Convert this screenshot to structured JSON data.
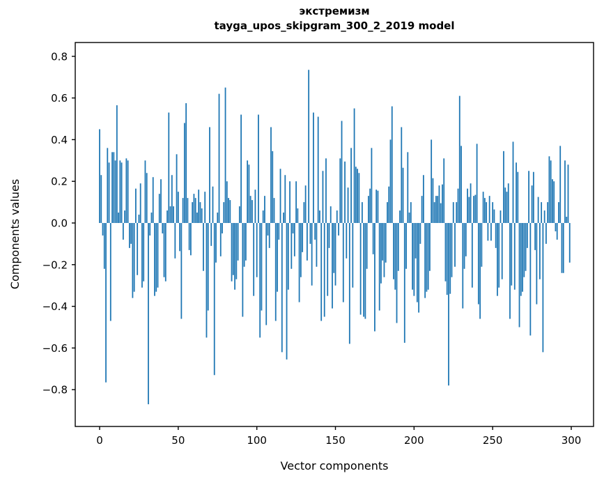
{
  "chart_data": {
    "type": "bar",
    "title_line1": "экстремизм",
    "title_line2": "tayga_upos_skipgram_300_2_2019 model",
    "xlabel": "Vector components",
    "ylabel": "Components values",
    "bar_color": "#1f77b4",
    "axis_color": "#000000",
    "background_color": "#ffffff",
    "n_components": 300,
    "xlim": [
      -16,
      316
    ],
    "ylim": [
      -0.95,
      0.87
    ],
    "grid": false,
    "legend": "none",
    "x_ticks": [
      {
        "value": 0,
        "label": "0"
      },
      {
        "value": 50,
        "label": "50"
      },
      {
        "value": 100,
        "label": "100"
      },
      {
        "value": 150,
        "label": "150"
      },
      {
        "value": 200,
        "label": "200"
      },
      {
        "value": 250,
        "label": "250"
      },
      {
        "value": 300,
        "label": "300"
      }
    ],
    "y_ticks": [
      {
        "value": 0.8,
        "label": "0.8"
      },
      {
        "value": 0.6,
        "label": "0.6"
      },
      {
        "value": 0.4,
        "label": "0.4"
      },
      {
        "value": 0.2,
        "label": "0.2"
      },
      {
        "value": 0.0,
        "label": "0.0"
      },
      {
        "value": -0.2,
        "label": "−0.2"
      },
      {
        "value": -0.4,
        "label": "−0.4"
      },
      {
        "value": -0.6,
        "label": "−0.6"
      },
      {
        "value": -0.8,
        "label": "−0.8"
      }
    ],
    "values": [
      0.45,
      0.23,
      -0.06,
      -0.22,
      -0.765,
      0.36,
      0.29,
      -0.47,
      0.34,
      0.34,
      0.3,
      0.565,
      0.05,
      0.3,
      0.29,
      -0.08,
      0.06,
      0.31,
      0.3,
      -0.12,
      -0.1,
      -0.36,
      -0.33,
      0.165,
      -0.25,
      0.04,
      0.19,
      -0.31,
      -0.28,
      0.3,
      0.24,
      -0.87,
      -0.06,
      0.05,
      0.22,
      -0.35,
      -0.33,
      -0.31,
      0.14,
      0.21,
      -0.05,
      -0.26,
      -0.28,
      0.06,
      0.53,
      0.08,
      0.23,
      0.08,
      -0.17,
      0.33,
      0.15,
      -0.135,
      -0.46,
      0.12,
      0.48,
      0.575,
      0.12,
      -0.13,
      -0.155,
      0.1,
      0.14,
      0.12,
      0.05,
      0.16,
      0.1,
      0.07,
      -0.23,
      0.15,
      -0.55,
      -0.42,
      0.46,
      -0.11,
      0.175,
      -0.73,
      -0.19,
      0.05,
      0.62,
      -0.16,
      -0.05,
      0.1,
      0.65,
      0.2,
      0.12,
      0.11,
      -0.28,
      -0.25,
      -0.32,
      -0.27,
      -0.18,
      0.08,
      0.52,
      -0.45,
      -0.21,
      -0.18,
      0.3,
      0.28,
      0.13,
      0.11,
      -0.35,
      0.16,
      -0.26,
      0.52,
      -0.55,
      -0.42,
      0.06,
      0.13,
      -0.49,
      -0.06,
      -0.12,
      0.46,
      0.345,
      0.12,
      -0.47,
      -0.33,
      -0.08,
      0.26,
      -0.62,
      0.05,
      0.23,
      -0.655,
      -0.32,
      0.2,
      -0.22,
      -0.05,
      -0.16,
      0.2,
      0.07,
      -0.38,
      -0.26,
      -0.14,
      0.1,
      0.18,
      -0.18,
      0.735,
      -0.1,
      -0.3,
      0.53,
      -0.08,
      -0.21,
      0.51,
      0.06,
      -0.47,
      0.25,
      -0.45,
      0.31,
      -0.35,
      -0.12,
      0.08,
      -0.41,
      -0.24,
      -0.3,
      0.06,
      -0.06,
      0.31,
      0.49,
      -0.38,
      0.295,
      -0.17,
      0.17,
      -0.58,
      0.36,
      -0.31,
      0.55,
      0.27,
      0.26,
      0.24,
      -0.44,
      0.1,
      -0.45,
      -0.46,
      -0.22,
      0.13,
      0.165,
      0.36,
      -0.15,
      -0.52,
      0.16,
      0.155,
      -0.42,
      -0.29,
      -0.18,
      -0.26,
      -0.19,
      0.1,
      0.175,
      0.4,
      0.56,
      -0.27,
      -0.32,
      -0.48,
      -0.23,
      0.06,
      0.46,
      0.265,
      -0.575,
      -0.22,
      0.34,
      0.05,
      0.1,
      -0.32,
      -0.35,
      -0.17,
      -0.38,
      -0.43,
      -0.1,
      0.13,
      0.23,
      -0.36,
      -0.33,
      -0.32,
      -0.23,
      0.4,
      0.215,
      0.1,
      0.13,
      0.13,
      0.18,
      0.095,
      0.185,
      0.31,
      -0.28,
      -0.345,
      -0.78,
      -0.34,
      -0.26,
      0.1,
      -0.21,
      0.1,
      0.165,
      0.61,
      0.37,
      -0.41,
      -0.22,
      -0.16,
      0.165,
      0.125,
      0.19,
      -0.31,
      0.13,
      0.135,
      0.38,
      -0.39,
      -0.46,
      -0.21,
      0.15,
      0.12,
      0.1,
      -0.085,
      0.13,
      -0.085,
      0.1,
      0.065,
      -0.12,
      -0.35,
      -0.31,
      0.06,
      -0.27,
      0.345,
      0.17,
      0.15,
      0.19,
      -0.46,
      -0.3,
      0.39,
      -0.32,
      0.29,
      0.245,
      -0.5,
      -0.35,
      -0.33,
      -0.26,
      -0.23,
      -0.12,
      0.25,
      -0.54,
      0.18,
      0.245,
      -0.13,
      -0.39,
      0.125,
      -0.27,
      0.1,
      -0.62,
      0.06,
      -0.1,
      0.1,
      0.32,
      0.3,
      0.21,
      0.2,
      -0.04,
      -0.08,
      0.1,
      0.37,
      -0.24,
      -0.24,
      0.3,
      0.03,
      0.28,
      -0.19
    ]
  }
}
